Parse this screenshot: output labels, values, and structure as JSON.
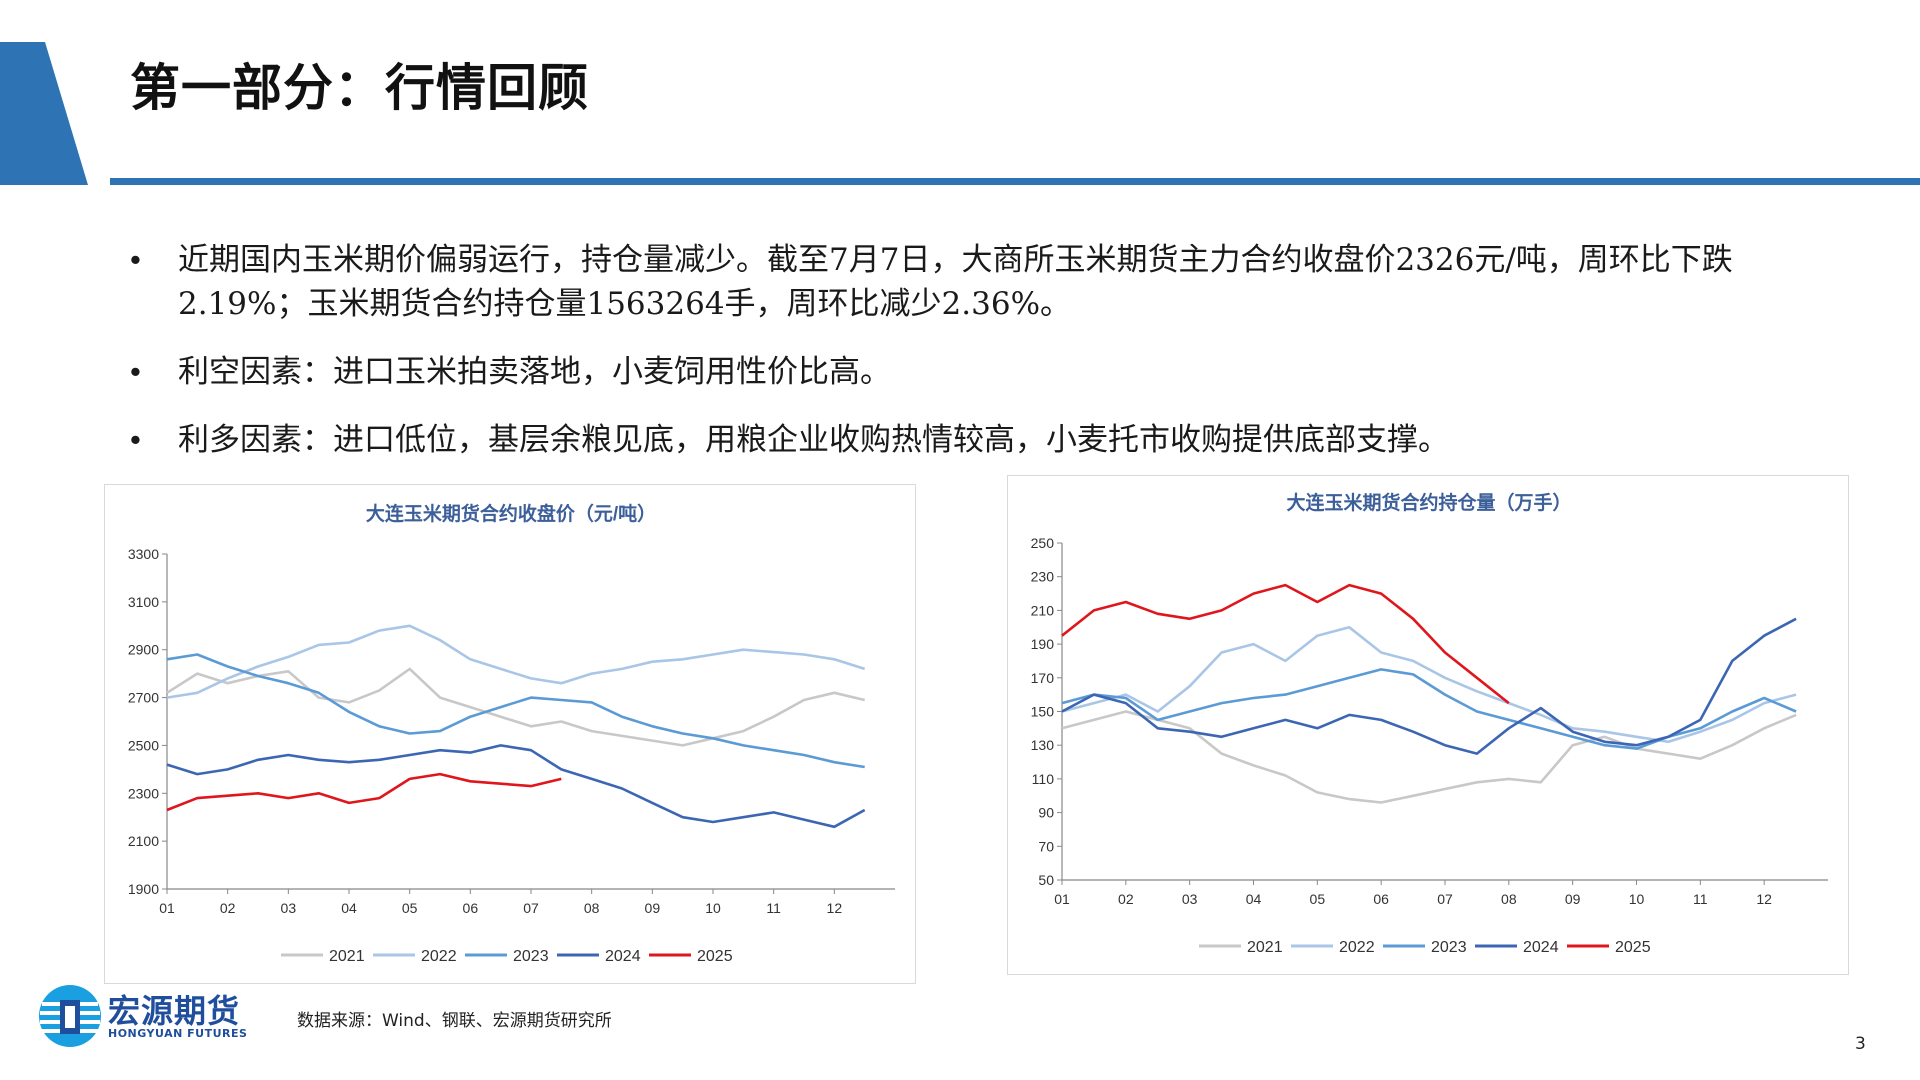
{
  "header": {
    "title": "第一部分：行情回顾"
  },
  "bullets": [
    "近期国内玉米期价偏弱运行，持仓量减少。截至7月7日，大商所玉米期货主力合约收盘价2326元/吨，周环比下跌2.19%；玉米期货合约持仓量1563264手，周环比减少2.36%。",
    "利空因素：进口玉米拍卖落地，小麦饲用性价比高。",
    "利多因素：进口低位，基层余粮见底，用粮企业收购热情较高，小麦托市收购提供底部支撑。"
  ],
  "bullet_symbol": "•",
  "colors": {
    "accent": "#2e74b5",
    "series": [
      "#c8c8c8",
      "#a9c6e6",
      "#5b9bd5",
      "#3c66b4",
      "#e0161d"
    ]
  },
  "chart_data": [
    {
      "type": "line",
      "title": "大连玉米期货合约收盘价（元/吨）",
      "x_ticks": [
        "01",
        "02",
        "03",
        "04",
        "05",
        "06",
        "07",
        "08",
        "09",
        "10",
        "11",
        "12"
      ],
      "x": [
        1,
        1.5,
        2,
        2.5,
        3,
        3.5,
        4,
        4.5,
        5,
        5.5,
        6,
        6.5,
        7,
        7.5,
        8,
        8.5,
        9,
        9.5,
        10,
        10.5,
        11,
        11.5,
        12,
        12.5
      ],
      "ylim": [
        1900,
        3300
      ],
      "y_ticks": [
        1900,
        2100,
        2300,
        2500,
        2700,
        2900,
        3100,
        3300
      ],
      "legend": "bottom",
      "grid": false,
      "series": [
        {
          "name": "2021",
          "values": [
            2720,
            2800,
            2760,
            2790,
            2810,
            2700,
            2680,
            2730,
            2820,
            2700,
            2660,
            2620,
            2580,
            2600,
            2560,
            2540,
            2520,
            2500,
            2530,
            2560,
            2620,
            2690,
            2720,
            2690
          ]
        },
        {
          "name": "2022",
          "values": [
            2700,
            2720,
            2780,
            2830,
            2870,
            2920,
            2930,
            2980,
            3000,
            2940,
            2860,
            2820,
            2780,
            2760,
            2800,
            2820,
            2850,
            2860,
            2880,
            2900,
            2890,
            2880,
            2860,
            2820
          ]
        },
        {
          "name": "2023",
          "values": [
            2860,
            2880,
            2830,
            2790,
            2760,
            2720,
            2640,
            2580,
            2550,
            2560,
            2620,
            2660,
            2700,
            2690,
            2680,
            2620,
            2580,
            2550,
            2530,
            2500,
            2480,
            2460,
            2430,
            2410
          ]
        },
        {
          "name": "2024",
          "values": [
            2420,
            2380,
            2400,
            2440,
            2460,
            2440,
            2430,
            2440,
            2460,
            2480,
            2470,
            2500,
            2480,
            2400,
            2360,
            2320,
            2260,
            2200,
            2180,
            2200,
            2220,
            2190,
            2160,
            2230
          ]
        },
        {
          "name": "2025",
          "values": [
            2230,
            2280,
            2290,
            2300,
            2280,
            2300,
            2260,
            2280,
            2360,
            2380,
            2350,
            2340,
            2330,
            2360,
            null,
            null,
            null,
            null,
            null,
            null,
            null,
            null,
            null,
            null
          ]
        }
      ]
    },
    {
      "type": "line",
      "title": "大连玉米期货合约持仓量（万手）",
      "x_ticks": [
        "01",
        "02",
        "03",
        "04",
        "05",
        "06",
        "07",
        "08",
        "09",
        "10",
        "11",
        "12"
      ],
      "x": [
        1,
        1.5,
        2,
        2.5,
        3,
        3.5,
        4,
        4.5,
        5,
        5.5,
        6,
        6.5,
        7,
        7.5,
        8,
        8.5,
        9,
        9.5,
        10,
        10.5,
        11,
        11.5,
        12,
        12.5
      ],
      "ylim": [
        50,
        250
      ],
      "y_ticks": [
        50,
        70,
        90,
        110,
        130,
        150,
        170,
        190,
        210,
        230,
        250
      ],
      "legend": "bottom",
      "grid": false,
      "series": [
        {
          "name": "2021",
          "values": [
            140,
            145,
            150,
            145,
            140,
            125,
            118,
            112,
            102,
            98,
            96,
            100,
            104,
            108,
            110,
            108,
            130,
            135,
            128,
            125,
            122,
            130,
            140,
            148
          ]
        },
        {
          "name": "2022",
          "values": [
            150,
            155,
            160,
            150,
            165,
            185,
            190,
            180,
            195,
            200,
            185,
            180,
            170,
            162,
            155,
            148,
            140,
            138,
            135,
            132,
            138,
            145,
            155,
            160
          ]
        },
        {
          "name": "2023",
          "values": [
            155,
            160,
            158,
            145,
            150,
            155,
            158,
            160,
            165,
            170,
            175,
            172,
            160,
            150,
            145,
            140,
            135,
            130,
            128,
            135,
            140,
            150,
            158,
            150
          ]
        },
        {
          "name": "2024",
          "values": [
            150,
            160,
            155,
            140,
            138,
            135,
            140,
            145,
            140,
            148,
            145,
            138,
            130,
            125,
            140,
            152,
            138,
            132,
            130,
            135,
            145,
            180,
            195,
            205
          ]
        },
        {
          "name": "2025",
          "values": [
            195,
            210,
            215,
            208,
            205,
            210,
            220,
            225,
            215,
            225,
            220,
            205,
            185,
            170,
            155,
            null,
            null,
            null,
            null,
            null,
            null,
            null,
            null,
            null
          ]
        }
      ]
    }
  ],
  "footer": {
    "logo_cn": "宏源期货",
    "logo_en": "HONGYUAN FUTURES",
    "source": "数据来源：Wind、钢联、宏源期货研究所",
    "page_number": "3"
  }
}
